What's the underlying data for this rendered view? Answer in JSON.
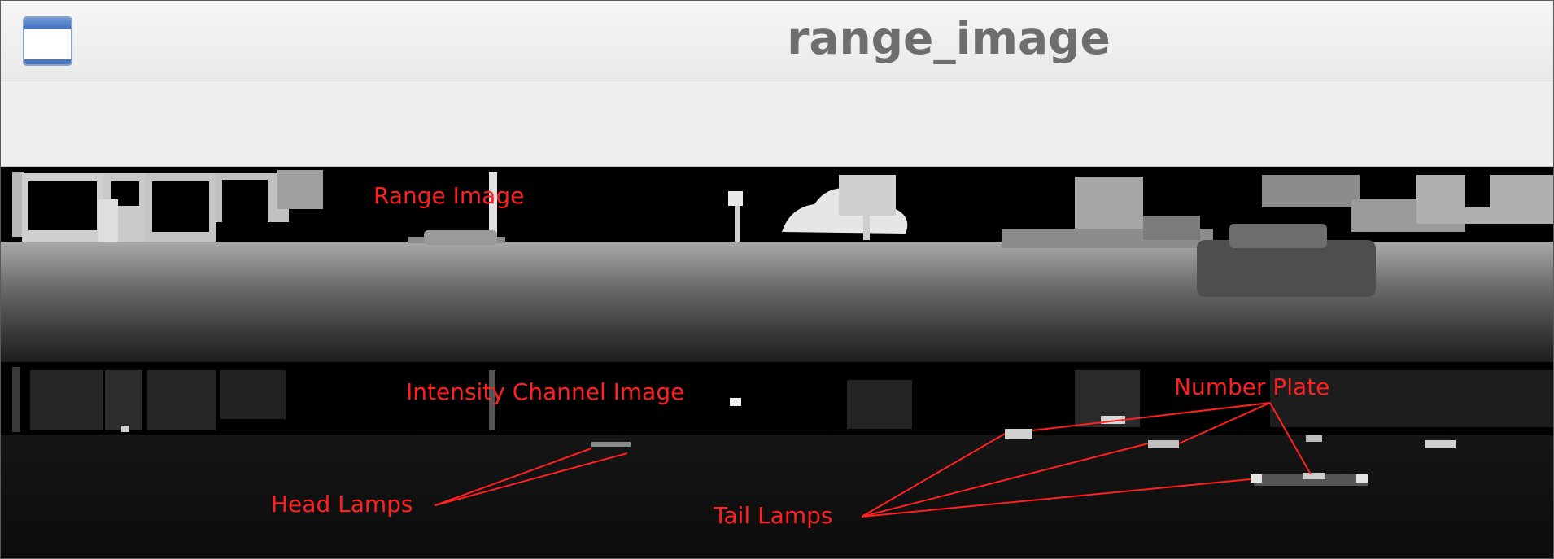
{
  "window": {
    "title": "range_image",
    "icon": "window-app-icon"
  },
  "annotations": {
    "range_image": "Range Image",
    "intensity_channel_image": "Intensity Channel Image",
    "number_plate": "Number Plate",
    "head_lamps": "Head Lamps",
    "tail_lamps": "Tail Lamps",
    "color": "#ff2020"
  }
}
